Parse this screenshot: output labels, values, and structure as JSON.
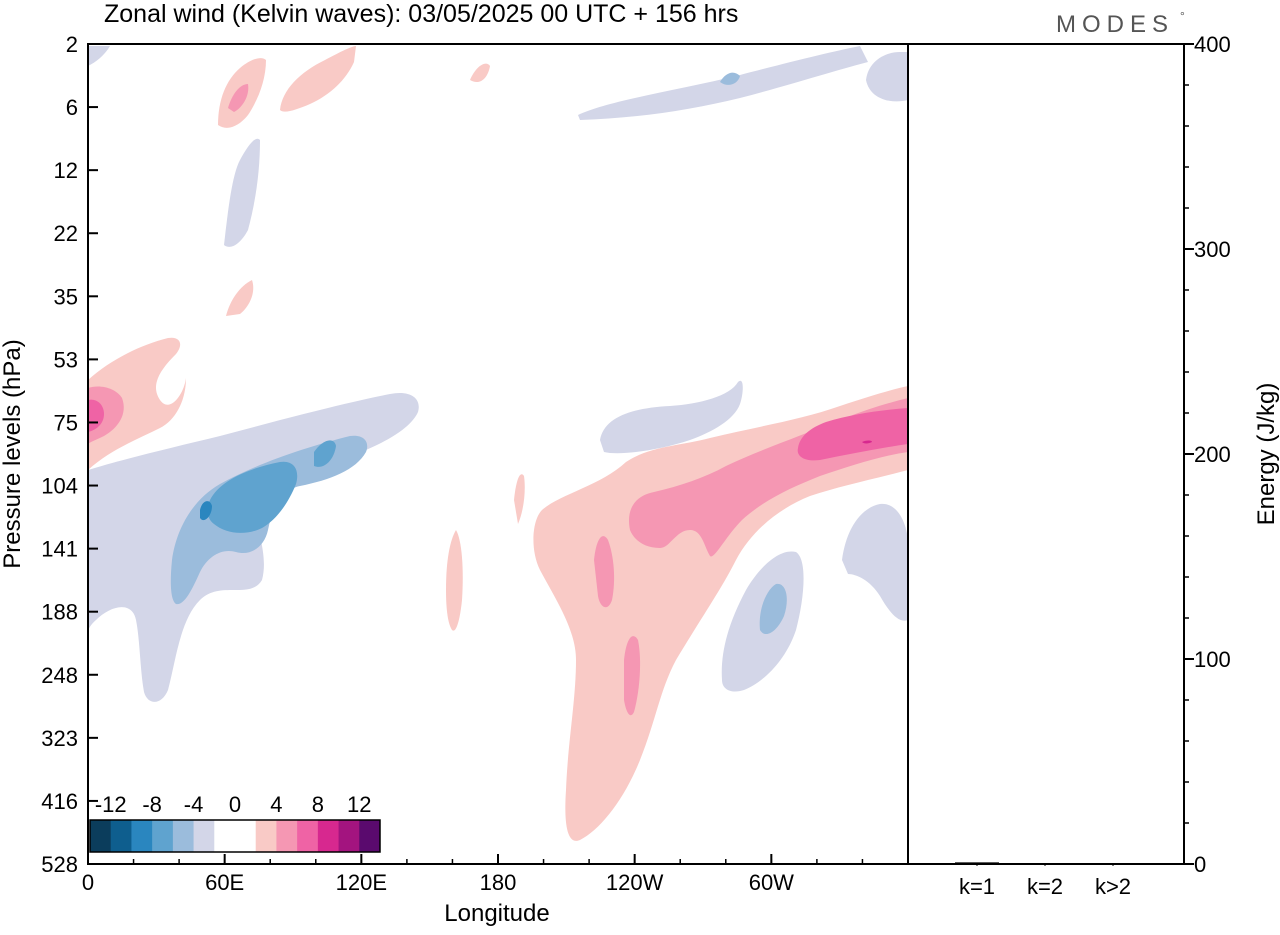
{
  "chart_data": [
    {
      "type": "heatmap",
      "title": "Zonal wind (Kelvin waves):  03/05/2025  00 UTC  + 156 hrs",
      "xlabel": "Longitude",
      "ylabel": "Pressure levels (hPa)",
      "x_ticks": [
        "0",
        "60E",
        "120E",
        "180",
        "120W",
        "60W"
      ],
      "x_tick_values": [
        0,
        60,
        120,
        180,
        240,
        300
      ],
      "xlim": [
        0,
        360
      ],
      "y_ticks": [
        "2",
        "6",
        "12",
        "22",
        "35",
        "53",
        "75",
        "104",
        "141",
        "188",
        "248",
        "323",
        "416",
        "528"
      ],
      "y_axis": "pressure levels, top to bottom, evenly spaced",
      "colorbar": {
        "tick_labels": [
          "-12",
          "-8",
          "-4",
          "0",
          "4",
          "8",
          "12"
        ],
        "colors": [
          "#0b3d5c",
          "#0e5e8e",
          "#2a86bf",
          "#5fa3cf",
          "#9bbcdc",
          "#d3d6e8",
          "#ffffff",
          "#ffffff",
          "#f9cac6",
          "#f597b3",
          "#ef63a5",
          "#d7288f",
          "#a3147f",
          "#5a0a6e"
        ]
      },
      "features": [
        {
          "sign": "positive",
          "level": 1,
          "lon": [
            70,
            90
          ],
          "pressure": [
            2,
            12
          ]
        },
        {
          "sign": "positive",
          "level": 1,
          "lon": [
            85,
            115
          ],
          "pressure": [
            2,
            6
          ]
        },
        {
          "sign": "negative",
          "level": 1,
          "lon": [
            210,
            285
          ],
          "pressure": [
            2,
            10
          ]
        },
        {
          "sign": "positive",
          "level": 2,
          "lon": [
            0,
            15
          ],
          "pressure": [
            60,
            104
          ]
        },
        {
          "sign": "negative",
          "level": 3,
          "lon": [
            30,
            100
          ],
          "pressure": [
            75,
            188
          ]
        },
        {
          "sign": "negative",
          "level": 1,
          "lon": [
            0,
            140
          ],
          "pressure": [
            75,
            248
          ]
        },
        {
          "sign": "positive",
          "level": 1,
          "lon": [
            195,
            360
          ],
          "pressure": [
            60,
            416
          ]
        },
        {
          "sign": "positive",
          "level": 3,
          "lon": [
            310,
            360
          ],
          "pressure": [
            60,
            104
          ]
        },
        {
          "sign": "negative",
          "level": 2,
          "lon": [
            255,
            290
          ],
          "pressure": [
            141,
            248
          ]
        }
      ]
    },
    {
      "type": "bar",
      "categories": [
        "k=1",
        "k=2",
        "k>2"
      ],
      "values": [
        0.8,
        0.2,
        0.4
      ],
      "ylabel": "Energy (J/kg)",
      "ylim": [
        0,
        400
      ],
      "y_ticks": [
        "0",
        "100",
        "200",
        "300",
        "400"
      ],
      "y_tick_values": [
        0,
        100,
        200,
        300,
        400
      ]
    }
  ],
  "branding": {
    "logo_text": "MODES",
    "logo_mark": "°"
  },
  "colors": {
    "neg1": "#d3d6e8",
    "neg2": "#9bbcdc",
    "neg3": "#5fa3cf",
    "neg4": "#2a86bf",
    "pos1": "#f9cac6",
    "pos2": "#f597b3",
    "pos3": "#ef63a5",
    "pos4": "#d7288f"
  }
}
